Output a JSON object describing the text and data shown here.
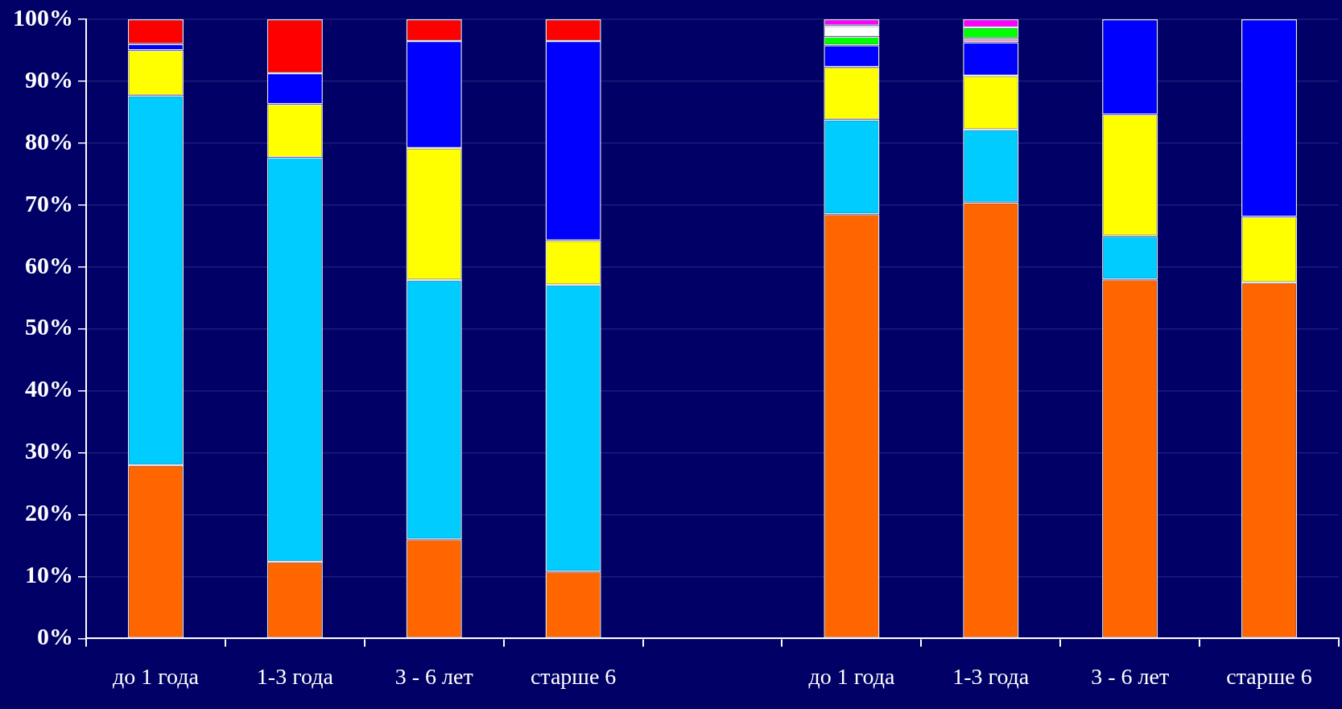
{
  "chart_data": {
    "type": "bar",
    "stacked": true,
    "categories": [
      "до 1 года",
      "1-3 года",
      "3 - 6 лет",
      "старше 6",
      null,
      "до 1 года",
      "1-3 года",
      "3 - 6 лет",
      "старше 6"
    ],
    "series": [
      {
        "color": "#ff6600",
        "values": [
          28,
          12.4,
          16,
          10.8,
          null,
          68.5,
          70.4,
          58,
          57.5
        ]
      },
      {
        "color": "#00ccff",
        "values": [
          59.7,
          65.3,
          41.9,
          46.3,
          null,
          15.3,
          11.8,
          7,
          null
        ]
      },
      {
        "color": "#ffff00",
        "values": [
          7.3,
          8.6,
          21.3,
          7.2,
          null,
          8.5,
          8.7,
          19.6,
          10.6
        ]
      },
      {
        "color": "#0000ff",
        "values": [
          1,
          5,
          17.3,
          32.2,
          null,
          3.5,
          5.4,
          15.4,
          31.9
        ]
      },
      {
        "color": "#ff0000",
        "values": [
          4,
          8.7,
          3.5,
          3.5,
          null,
          null,
          null,
          null,
          null
        ]
      },
      {
        "color": "#ff99cc",
        "values": [
          null,
          null,
          null,
          null,
          null,
          null,
          0.6,
          null,
          null
        ]
      },
      {
        "color": "#00ff00",
        "values": [
          null,
          null,
          null,
          null,
          null,
          1.4,
          1.8,
          null,
          null
        ]
      },
      {
        "color": "#ffffff",
        "values": [
          null,
          null,
          null,
          null,
          null,
          1.8,
          null,
          null,
          null
        ]
      },
      {
        "color": "#ff00ff",
        "values": [
          null,
          null,
          null,
          null,
          null,
          1,
          1.3,
          null,
          null
        ]
      }
    ],
    "ylim": [
      0,
      100
    ],
    "yticks": [
      {
        "value": 0,
        "label": "0%"
      },
      {
        "value": 10,
        "label": "10%"
      },
      {
        "value": 20,
        "label": "20%"
      },
      {
        "value": 30,
        "label": "30%"
      },
      {
        "value": 40,
        "label": "40%"
      },
      {
        "value": 50,
        "label": "50%"
      },
      {
        "value": 60,
        "label": "60%"
      },
      {
        "value": 70,
        "label": "70%"
      },
      {
        "value": 80,
        "label": "80%"
      },
      {
        "value": 90,
        "label": "90%"
      },
      {
        "value": 100,
        "label": "100%"
      }
    ],
    "grid": "y",
    "legend": false
  }
}
